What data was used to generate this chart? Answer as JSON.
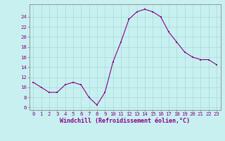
{
  "x": [
    0,
    1,
    2,
    3,
    4,
    5,
    6,
    7,
    8,
    9,
    10,
    11,
    12,
    13,
    14,
    15,
    16,
    17,
    18,
    19,
    20,
    21,
    22,
    23
  ],
  "y": [
    11,
    10,
    9,
    9,
    10.5,
    11,
    10.5,
    8,
    6.5,
    9,
    15,
    19,
    23.5,
    25,
    25.5,
    25,
    24,
    21,
    19,
    17,
    16,
    15.5,
    15.5,
    14.5
  ],
  "line_color": "#880088",
  "marker": "s",
  "marker_size": 2.0,
  "background_color": "#c8f0f0",
  "grid_color": "#aadddd",
  "xlabel": "Windchill (Refroidissement éolien,°C)",
  "yticks": [
    6,
    8,
    10,
    12,
    14,
    16,
    18,
    20,
    22,
    24
  ],
  "xticks": [
    0,
    1,
    2,
    3,
    4,
    5,
    6,
    7,
    8,
    9,
    10,
    11,
    12,
    13,
    14,
    15,
    16,
    17,
    18,
    19,
    20,
    21,
    22,
    23
  ],
  "ylim": [
    5.5,
    26.5
  ],
  "xlim": [
    -0.5,
    23.5
  ],
  "tick_color": "#880088",
  "tick_fontsize": 5.2,
  "xlabel_fontsize": 6.0,
  "linewidth": 0.8
}
